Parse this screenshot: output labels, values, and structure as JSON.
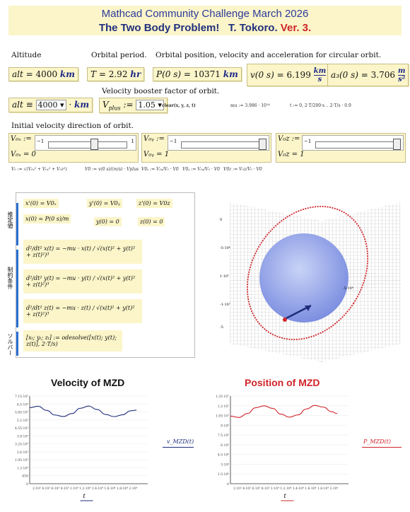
{
  "header": {
    "line1": "Mathcad Community Challenge March 2026",
    "line2a": "The Two Body Problem!",
    "line2b": "T. Tokoro.",
    "line2c": "Ver. 3."
  },
  "labels": {
    "altitude": "Altitude",
    "period": "Orbital period.",
    "orbital": "Orbital position, velocity and acceleration for circular orbit.",
    "booster": "Velocity booster factor of orbit.",
    "direction": "Initial velocity direction of orbit."
  },
  "results": {
    "alt": {
      "lhs": "alt",
      "eq": "=",
      "val": "4000",
      "unit": "km"
    },
    "T": {
      "lhs": "T",
      "eq": "=",
      "val": "2.92",
      "unit": "hr"
    },
    "P": {
      "lhs": "P(0 s)",
      "eq": "=",
      "val": "10371",
      "unit": "km"
    },
    "v": {
      "lhs": "v(0 s)",
      "eq": "=",
      "val": "6.199",
      "unit_num": "km",
      "unit_den": "s"
    },
    "a": {
      "lhs": "a₃(0 s)",
      "eq": "=",
      "val": "3.706",
      "unit_num": "m",
      "unit_den": "s²"
    }
  },
  "inputs": {
    "alt_def": {
      "lhs": "alt",
      "op": "≡",
      "val": "4000",
      "unit": "km"
    },
    "vplus": {
      "lhs": "V",
      "sub": "plus",
      "op": ":=",
      "val": "1.05"
    },
    "clear": "clear(x, y, z, t)",
    "mu": "mu := 3.986 · 10¹⁴",
    "trange": "t := 0, 2·T/200·s .. 2·T/s · 0.9"
  },
  "sliders": [
    {
      "top": "V₀ₓ :=",
      "bottom": "V₀ₓ = 0",
      "min": "−1",
      "max": "1",
      "value": 0
    },
    {
      "top": "V₀ᵧ :=",
      "bottom": "V₀ᵧ = 1",
      "min": "−1",
      "max": "1",
      "value": 1
    },
    {
      "top": "V₀z :=",
      "bottom": "V₀z = 1",
      "min": "−1",
      "max": "1",
      "value": 1
    }
  ],
  "formulas": {
    "f1": "V₀ := √(V₀ₓ² + V₀ᵧ² + V₀z²)",
    "f2": "V0 := v(0 s)/(m/s) · Vplus",
    "f3": "V0ₓ := V₀ₓ/V₀ · V0",
    "f4": "V0ᵧ := V₀ᵧ/V₀ · V0",
    "f5": "V0z := V₀z/V₀ · V0"
  },
  "solve_block": {
    "side_guess": "推定値",
    "side_constraint": "制約条件",
    "side_solver": "ソルバー",
    "g1": "x'(0) = V0ₓ",
    "g2": "y'(0) = V0ᵧ",
    "g3": "z'(0) = V0z",
    "g4": "x(0) = P(0 s)/m",
    "g5": "y(0) = 0",
    "g6": "z(0) = 0",
    "c1": "d²/dt² x(t) = −mu · x(t) / √(x(t)² + y(t)² + z(t)²)³",
    "c2": "d²/dt² y(t) = −mu · y(t) / √(x(t)² + y(t)² + z(t)²)³",
    "c3": "d²/dt² z(t) = −mu · z(t) / √(x(t)² + y(t)² + z(t)²)³",
    "solver": "[xₜ; yₜ; zₜ] := odesolve([x(t); y(t); z(t)], 2·T/s)"
  },
  "plot3d": {
    "ticks": [
      "0",
      "-5·10⁶",
      "1·10⁷",
      "-5·10⁶",
      "-1·10⁷",
      "-5"
    ]
  },
  "charts": [
    {
      "title": "Velocity of MZD",
      "color": "#1f2d7a",
      "legend": "v_MZD(t)",
      "xlabel": "t",
      "yticks": [
        "7.15·10³",
        "6.5·10³",
        "5.85·10³",
        "5.2·10³",
        "4.55·10³",
        "3.9·10³",
        "3.25·10³",
        "2.6·10³",
        "1.95·10³",
        "1.3·10³",
        "650",
        "0"
      ],
      "xticks": "2·10³ 4·10³ 6·10³ 8·10³ 1·10⁴ 1.2·10⁴ 1.4·10⁴ 1.6·10⁴ 1.8·10⁴ 2·10⁴"
    },
    {
      "title": "Position of MZD",
      "color": "#d0242a",
      "legend": "P_MZD(t)",
      "xlabel": "t",
      "yticks": [
        "1.35·10⁷",
        "1.2·10⁷",
        "1.05·10⁷",
        "9·10⁶",
        "7.5·10⁶",
        "6·10⁶",
        "4.5·10⁶",
        "3·10⁶",
        "1.5·10⁶",
        "0"
      ],
      "xticks": "2·10³ 4·10³ 6·10³ 8·10³ 1·10⁴ 1.2·10⁴ 1.4·10⁴ 1.6·10⁴ 1.8·10⁴ 2·10⁴"
    }
  ],
  "chart_data": [
    {
      "type": "line",
      "title": "Velocity of MZD",
      "xlabel": "t",
      "ylabel": "",
      "xlim": [
        0,
        21000
      ],
      "ylim": [
        0,
        7150
      ],
      "series": [
        {
          "name": "v_MZD(t)",
          "x": [
            0,
            1500,
            3000,
            4500,
            6000,
            7500,
            9000,
            10500,
            12000,
            13500,
            15000,
            16500,
            18000,
            19000
          ],
          "values": [
            6200,
            6320,
            5980,
            5600,
            5480,
            5720,
            6150,
            6330,
            6050,
            5650,
            5470,
            5620,
            5950,
            6000
          ]
        }
      ]
    },
    {
      "type": "line",
      "title": "Position of MZD",
      "xlabel": "t",
      "ylabel": "",
      "xlim": [
        0,
        21000
      ],
      "ylim": [
        0,
        13500000
      ],
      "series": [
        {
          "name": "P_MZD(t)",
          "x": [
            0,
            1500,
            3000,
            4500,
            6000,
            7500,
            9000,
            10500,
            12000,
            13500,
            15000,
            16500,
            18000,
            19000
          ],
          "values": [
            10400000,
            10200000,
            10800000,
            11700000,
            12000000,
            11600000,
            10700000,
            10250000,
            10600000,
            11500000,
            12050000,
            11800000,
            11100000,
            10800000
          ]
        }
      ]
    }
  ]
}
